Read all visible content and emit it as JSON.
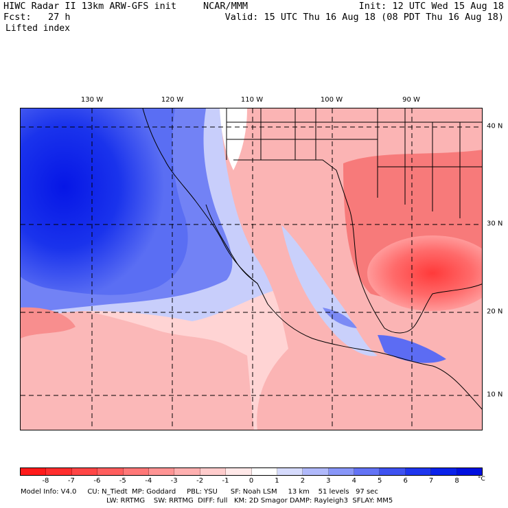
{
  "header": {
    "title": "HIWC Radar II 13km ARW-GFS init",
    "org": "NCAR/MMM",
    "init": "Init: 12 UTC Wed 15 Aug 18",
    "fcst": "Fcst:   27 h",
    "valid": "Valid: 15 UTC Thu 16 Aug 18 (08 PDT Thu 16 Aug 18)",
    "field": "Lifted index"
  },
  "map": {
    "lon_labels": [
      "130 W",
      "120 W",
      "110 W",
      "100 W",
      "90 W"
    ],
    "lat_labels": [
      "40 N",
      "30 N",
      "20 N",
      "10 N"
    ],
    "colors": {
      "ocean_stable": "#0a1fe8",
      "neutral": "#ffffff",
      "unstable": "#f25a5a"
    }
  },
  "colorbar": {
    "ticks": [
      "-8",
      "-7",
      "-6",
      "-5",
      "-4",
      "-3",
      "-2",
      "-1",
      "0",
      "1",
      "2",
      "3",
      "4",
      "5",
      "6",
      "7",
      "8"
    ],
    "unit": "°C",
    "colors": [
      "#ff1a1a",
      "#ff2e2e",
      "#ff4646",
      "#ff5e5e",
      "#ff7878",
      "#ff9494",
      "#ffb0b0",
      "#ffcccc",
      "#ffe8e8",
      "#ffffff",
      "#d6dbfd",
      "#b0b9fb",
      "#8896f8",
      "#6373f5",
      "#3e52f1",
      "#1f36ee",
      "#0a22ea",
      "#0010e0"
    ]
  },
  "footer": {
    "line1": "Model Info: V4.0     CU: N_Tiedt  MP: Goddard     PBL: YSU      SF: Noah LSM     13 km    51 levels   97 sec",
    "line2": "LW: RRTMG    SW: RRTMG  DIFF: full   KM: 2D Smagor DAMP: Rayleigh3  SFLAY: MM5"
  }
}
